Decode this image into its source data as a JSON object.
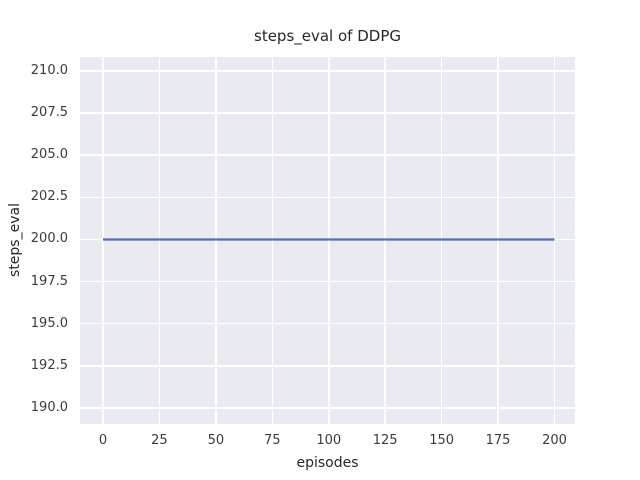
{
  "chart_data": {
    "type": "line",
    "title": "steps_eval of DDPG",
    "xlabel": "episodes",
    "ylabel": "steps_eval",
    "x_ticks": [
      0,
      25,
      50,
      75,
      100,
      125,
      150,
      175,
      200
    ],
    "x_tick_labels": [
      "0",
      "25",
      "50",
      "75",
      "100",
      "125",
      "150",
      "175",
      "200"
    ],
    "y_ticks": [
      210.0,
      207.5,
      205.0,
      202.5,
      200.0,
      197.5,
      195.0,
      192.5,
      190.0
    ],
    "y_tick_labels": [
      "210.0",
      "207.5",
      "205.0",
      "202.5",
      "200.0",
      "197.5",
      "195.0",
      "192.5",
      "190.0"
    ],
    "xlim": [
      -10.19,
      209.08
    ],
    "ylim": [
      189.05,
      210.83
    ],
    "grid": true,
    "legend": "none",
    "series": [
      {
        "name": "steps_eval",
        "color": "#4c72b0",
        "x": [
          0,
          200
        ],
        "y": [
          200,
          200
        ]
      }
    ],
    "style": {
      "figure_background": "#ffffff",
      "plot_background": "#eaeaf2",
      "grid_color": "#ffffff",
      "text_color": "#262626",
      "line_width": 2.2
    }
  }
}
